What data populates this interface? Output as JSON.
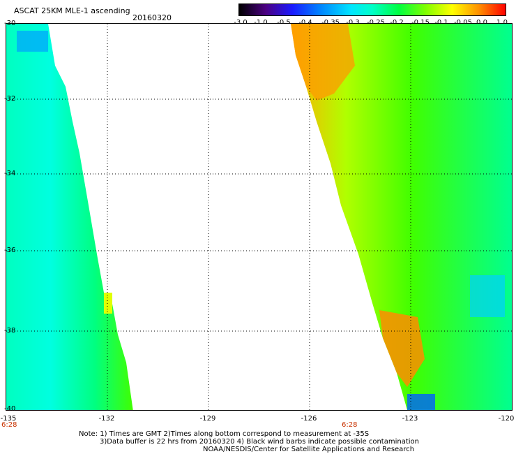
{
  "header": {
    "title": "ASCAT 25KM MLE-1 ascending",
    "date": "20160320"
  },
  "colorbar": {
    "ticks": [
      "-3.0",
      "-1.0",
      "-0.5",
      "-0.4",
      "-0.35",
      "-0.3",
      "-0.25",
      "-0.2",
      "-0.15",
      "-0.1",
      "-0.05",
      "0.0",
      "1.0"
    ],
    "colors": [
      "#000000",
      "#4b0082",
      "#1a1aff",
      "#0080ff",
      "#00e5ff",
      "#00ffc8",
      "#00ff40",
      "#80ff00",
      "#ffff00",
      "#ff9000",
      "#ff0000"
    ]
  },
  "map": {
    "lat_labels": [
      "-30",
      "-32",
      "-34",
      "-36",
      "-38",
      "-40"
    ],
    "lon_labels": [
      "-135",
      "-132",
      "-129",
      "-126",
      "-123",
      "-120"
    ],
    "time_labels": [
      "6:28",
      "6:28"
    ]
  },
  "notes": {
    "line1": "Note: 1) Times are GMT 2)Times along bottom correspond to measurement at -35S",
    "line2": "3)Data buffer is 22 hrs from 20160320 4) Black wind barbs indicate possible contamination",
    "line3": "NOAA/NESDIS/Center for Satellite Applications and Research"
  }
}
